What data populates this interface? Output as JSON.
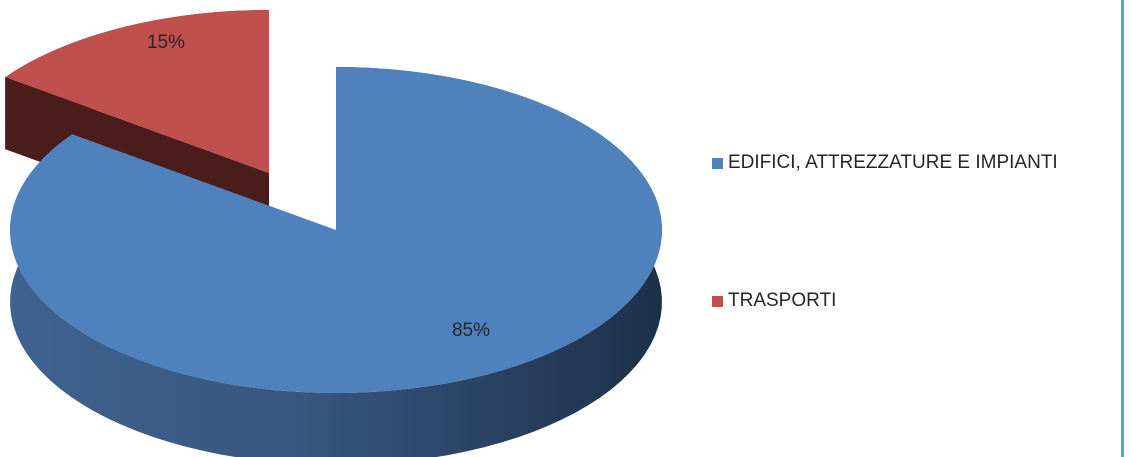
{
  "colors": {
    "frame_border": "#4aacc6"
  },
  "chart_data": {
    "type": "pie",
    "title": "",
    "three_d": true,
    "exploded_slice": "TRASPORTI",
    "legend_position": "right",
    "slices": [
      {
        "label": "EDIFICI, ATTREZZATURE E IMPIANTI",
        "value": 85,
        "value_label": "85%",
        "color": "#4f81bd",
        "side_color": "#1f3550"
      },
      {
        "label": "TRASPORTI",
        "value": 15,
        "value_label": "15%",
        "color": "#c0504d",
        "side_color": "#4a1d1c"
      }
    ]
  }
}
